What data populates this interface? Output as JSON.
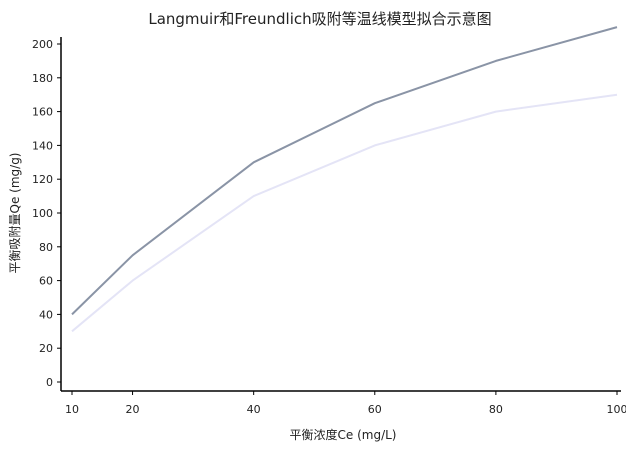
{
  "chart_data": {
    "type": "line",
    "title": "Langmuir和Freundlich吸附等温线模型拟合示意图",
    "xlabel": "平衡浓度Ce (mg/L)",
    "ylabel": "平衡吸附量Qe (mg/g)",
    "x": [
      10,
      20,
      40,
      60,
      80,
      100
    ],
    "x_ticks": [
      "10",
      "20",
      "40",
      "60",
      "80",
      "100"
    ],
    "y_ticks": [
      "0",
      "20",
      "40",
      "60",
      "80",
      "100",
      "120",
      "140",
      "160",
      "180",
      "200"
    ],
    "ylim": [
      0,
      200
    ],
    "grid": false,
    "legend": "none",
    "series": [
      {
        "values": [
          40,
          75,
          130,
          165,
          190,
          210
        ],
        "color": "#8a94a6"
      },
      {
        "values": [
          30,
          60,
          110,
          140,
          160,
          170
        ],
        "color": "#e4e4f6"
      }
    ]
  }
}
